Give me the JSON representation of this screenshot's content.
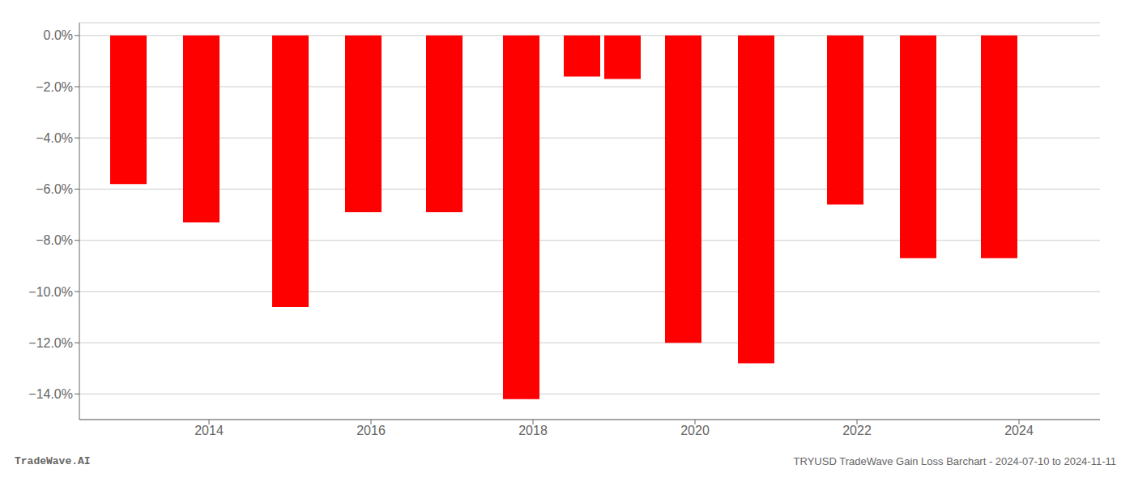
{
  "chart_data": {
    "type": "bar",
    "title": "TRYUSD TradeWave Gain Loss Barchart - 2024-07-10 to 2024-11-11",
    "annotations": [
      "TradeWave.AI"
    ],
    "x": [
      2013.0,
      2013.9,
      2015.0,
      2015.9,
      2016.9,
      2017.85,
      2018.6,
      2019.1,
      2019.85,
      2020.75,
      2021.85,
      2022.75,
      2023.75
    ],
    "values": [
      -5.8,
      -7.3,
      -10.6,
      -6.9,
      -6.9,
      -14.2,
      -1.6,
      -1.7,
      -12.0,
      -12.8,
      -6.6,
      -8.7,
      -8.7
    ],
    "color": "#ff0000",
    "xlim": [
      2012.4,
      2025.0
    ],
    "xticks": [
      2014,
      2016,
      2018,
      2020,
      2022,
      2024
    ],
    "ylim": [
      -15.0,
      0.5
    ],
    "yticks": [
      {
        "value": 0.0,
        "label": "0.0%"
      },
      {
        "value": -2.0,
        "label": "−2.0%"
      },
      {
        "value": -4.0,
        "label": "−4.0%"
      },
      {
        "value": -6.0,
        "label": "−6.0%"
      },
      {
        "value": -8.0,
        "label": "−8.0%"
      },
      {
        "value": -10.0,
        "label": "−10.0%"
      },
      {
        "value": -12.0,
        "label": "−12.0%"
      },
      {
        "value": -14.0,
        "label": "−14.0%"
      }
    ],
    "grid": true
  }
}
